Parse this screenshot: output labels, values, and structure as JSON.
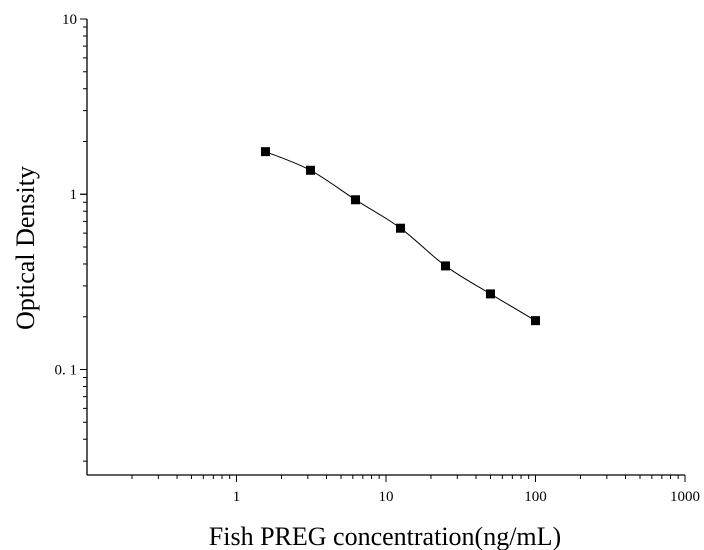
{
  "chart_data": {
    "type": "scatter",
    "xlabel": "Fish PREG concentration(ng/mL)",
    "ylabel": "Optical Density",
    "xscale": "log",
    "yscale": "log",
    "xlim": [
      0.1,
      1000
    ],
    "ylim": [
      0.025,
      10
    ],
    "x_ticks": [
      {
        "value": 1,
        "label": "1"
      },
      {
        "value": 10,
        "label": "10"
      },
      {
        "value": 100,
        "label": "100"
      },
      {
        "value": 1000,
        "label": "1000"
      }
    ],
    "y_ticks": [
      {
        "value": 0.1,
        "label": "0. 1"
      },
      {
        "value": 1,
        "label": "1"
      },
      {
        "value": 10,
        "label": "10"
      }
    ],
    "grid": false,
    "legend": "none",
    "series": [
      {
        "x": [
          1.5625,
          3.125,
          6.25,
          12.5,
          25,
          50,
          100
        ],
        "y": [
          1.75,
          1.37,
          0.93,
          0.64,
          0.39,
          0.27,
          0.19
        ],
        "marker": "square",
        "fit": "smooth-curve",
        "color": "#000000"
      }
    ]
  }
}
